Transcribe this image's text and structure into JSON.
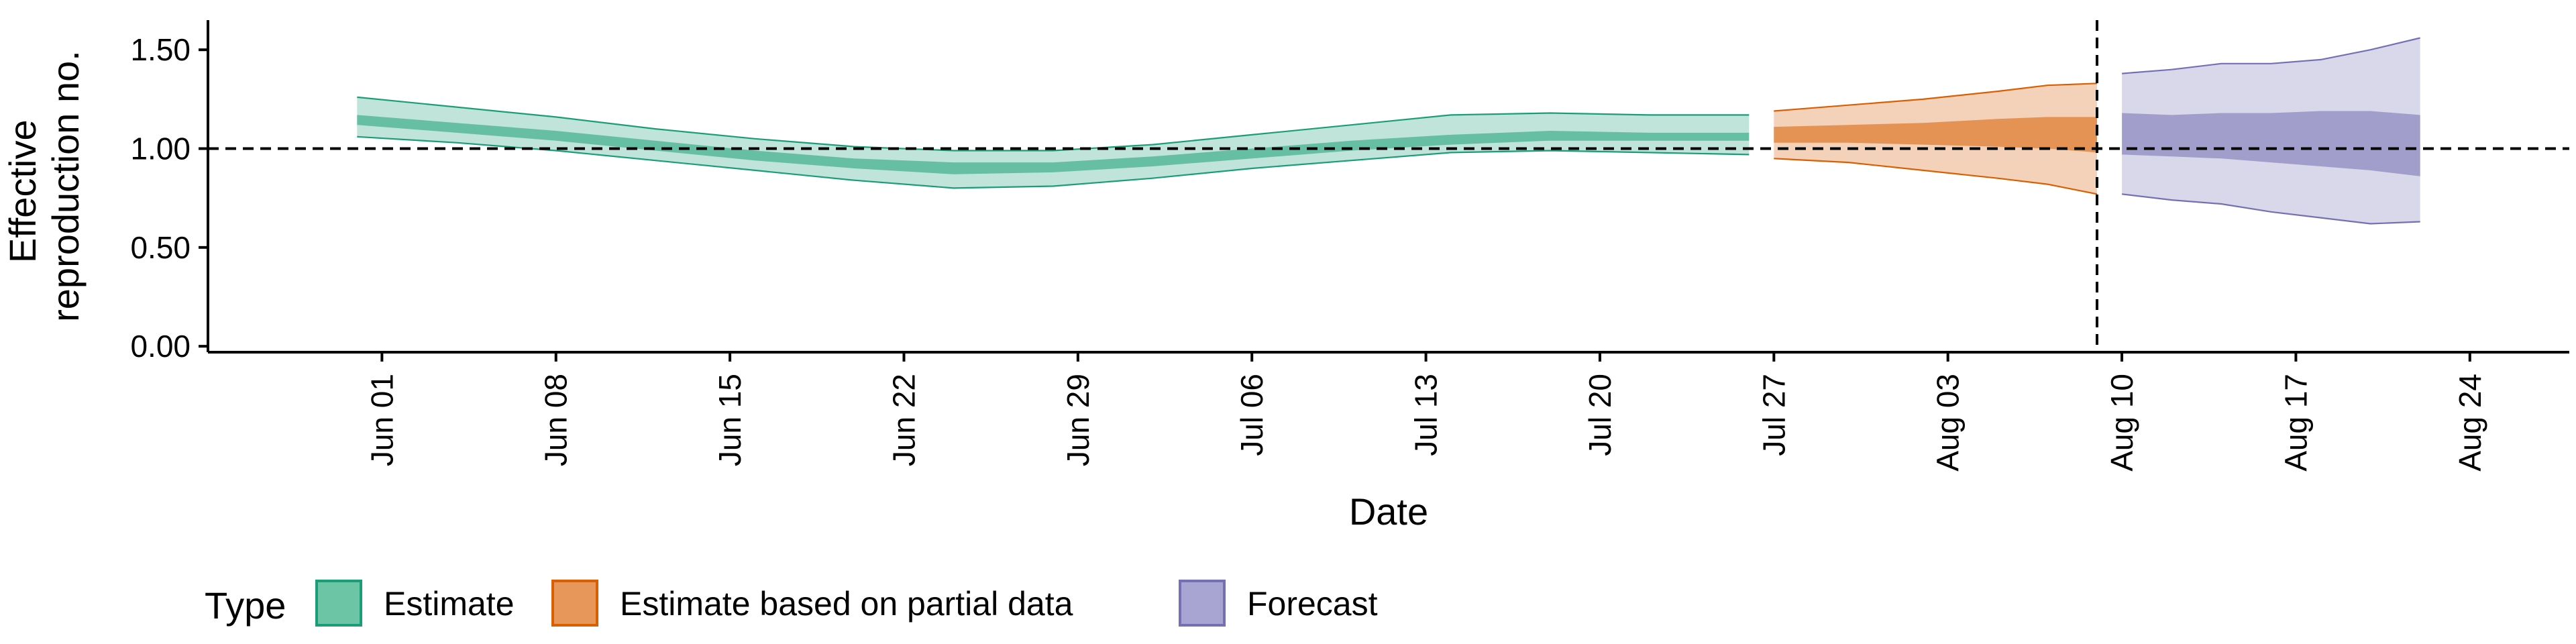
{
  "chart_data": {
    "type": "area",
    "xlabel": "Date",
    "ylabel": [
      "Effective",
      "reproduction no."
    ],
    "x_type": "date",
    "xlim": [
      "2020-05-25",
      "2020-08-28"
    ],
    "ylim": [
      -0.03,
      1.65
    ],
    "y_ticks": [
      0.0,
      0.5,
      1.0,
      1.5
    ],
    "y_tick_labels": [
      "0.00",
      "0.50",
      "1.00",
      "1.50"
    ],
    "x_ticks": [
      "2020-06-01",
      "2020-06-08",
      "2020-06-15",
      "2020-06-22",
      "2020-06-29",
      "2020-07-06",
      "2020-07-13",
      "2020-07-20",
      "2020-07-27",
      "2020-08-03",
      "2020-08-10",
      "2020-08-17",
      "2020-08-24"
    ],
    "x_tick_labels": [
      "Jun 01",
      "Jun 08",
      "Jun 15",
      "Jun 22",
      "Jun 29",
      "Jul 06",
      "Jul 13",
      "Jul 20",
      "Jul 27",
      "Aug 03",
      "Aug 10",
      "Aug 17",
      "Aug 24"
    ],
    "reference_line_y": 1.0,
    "reference_line_date": "2020-08-09",
    "grid": false,
    "legend": {
      "title": "Type",
      "position": "bottom-left",
      "entries": [
        {
          "label": "Estimate",
          "fill": "#6cc5a5",
          "stroke": "#1b9e77"
        },
        {
          "label": "Estimate based on partial data",
          "fill": "#e8975b",
          "stroke": "#d95f02"
        },
        {
          "label": "Forecast",
          "fill": "#a9a5d3",
          "stroke": "#7570b3"
        }
      ]
    },
    "series": [
      {
        "name": "Estimate",
        "fill": "#1b9e77",
        "stroke": "#1b9e77",
        "points": [
          {
            "date": "2020-05-31",
            "upper90": 1.26,
            "upper50": 1.17,
            "lower50": 1.12,
            "lower90": 1.06
          },
          {
            "date": "2020-06-04",
            "upper90": 1.21,
            "upper50": 1.13,
            "lower50": 1.08,
            "lower90": 1.03
          },
          {
            "date": "2020-06-08",
            "upper90": 1.16,
            "upper50": 1.09,
            "lower50": 1.04,
            "lower90": 0.99
          },
          {
            "date": "2020-06-12",
            "upper90": 1.1,
            "upper50": 1.04,
            "lower50": 0.99,
            "lower90": 0.94
          },
          {
            "date": "2020-06-16",
            "upper90": 1.05,
            "upper50": 0.99,
            "lower50": 0.94,
            "lower90": 0.89
          },
          {
            "date": "2020-06-20",
            "upper90": 1.01,
            "upper50": 0.95,
            "lower50": 0.9,
            "lower90": 0.84
          },
          {
            "date": "2020-06-24",
            "upper90": 0.99,
            "upper50": 0.93,
            "lower50": 0.87,
            "lower90": 0.8
          },
          {
            "date": "2020-06-28",
            "upper90": 0.99,
            "upper50": 0.93,
            "lower50": 0.88,
            "lower90": 0.81
          },
          {
            "date": "2020-07-02",
            "upper90": 1.02,
            "upper50": 0.96,
            "lower50": 0.91,
            "lower90": 0.85
          },
          {
            "date": "2020-07-06",
            "upper90": 1.07,
            "upper50": 1.0,
            "lower50": 0.95,
            "lower90": 0.9
          },
          {
            "date": "2020-07-10",
            "upper90": 1.12,
            "upper50": 1.04,
            "lower50": 0.99,
            "lower90": 0.94
          },
          {
            "date": "2020-07-14",
            "upper90": 1.17,
            "upper50": 1.07,
            "lower50": 1.02,
            "lower90": 0.98
          },
          {
            "date": "2020-07-18",
            "upper90": 1.18,
            "upper50": 1.09,
            "lower50": 1.04,
            "lower90": 0.99
          },
          {
            "date": "2020-07-22",
            "upper90": 1.17,
            "upper50": 1.08,
            "lower50": 1.04,
            "lower90": 0.98
          },
          {
            "date": "2020-07-26",
            "upper90": 1.17,
            "upper50": 1.08,
            "lower50": 1.04,
            "lower90": 0.97
          }
        ]
      },
      {
        "name": "Estimate based on partial data",
        "fill": "#d95f02",
        "stroke": "#d95f02",
        "points": [
          {
            "date": "2020-07-27",
            "upper90": 1.19,
            "upper50": 1.11,
            "lower50": 1.03,
            "lower90": 0.95
          },
          {
            "date": "2020-07-30",
            "upper90": 1.22,
            "upper50": 1.12,
            "lower50": 1.03,
            "lower90": 0.93
          },
          {
            "date": "2020-08-02",
            "upper90": 1.25,
            "upper50": 1.13,
            "lower50": 1.02,
            "lower90": 0.89
          },
          {
            "date": "2020-08-05",
            "upper90": 1.29,
            "upper50": 1.15,
            "lower50": 1.01,
            "lower90": 0.85
          },
          {
            "date": "2020-08-07",
            "upper90": 1.32,
            "upper50": 1.16,
            "lower50": 1.0,
            "lower90": 0.82
          },
          {
            "date": "2020-08-09",
            "upper90": 1.33,
            "upper50": 1.16,
            "lower50": 0.98,
            "lower90": 0.77
          }
        ]
      },
      {
        "name": "Forecast",
        "fill": "#7570b3",
        "stroke": "#7570b3",
        "points": [
          {
            "date": "2020-08-10",
            "upper90": 1.38,
            "upper50": 1.18,
            "lower50": 0.97,
            "lower90": 0.77
          },
          {
            "date": "2020-08-12",
            "upper90": 1.4,
            "upper50": 1.17,
            "lower50": 0.96,
            "lower90": 0.74
          },
          {
            "date": "2020-08-14",
            "upper90": 1.43,
            "upper50": 1.18,
            "lower50": 0.95,
            "lower90": 0.72
          },
          {
            "date": "2020-08-16",
            "upper90": 1.43,
            "upper50": 1.18,
            "lower50": 0.93,
            "lower90": 0.68
          },
          {
            "date": "2020-08-18",
            "upper90": 1.45,
            "upper50": 1.19,
            "lower50": 0.91,
            "lower90": 0.65
          },
          {
            "date": "2020-08-20",
            "upper90": 1.5,
            "upper50": 1.19,
            "lower50": 0.89,
            "lower90": 0.62
          },
          {
            "date": "2020-08-22",
            "upper90": 1.56,
            "upper50": 1.17,
            "lower50": 0.86,
            "lower90": 0.63
          }
        ]
      }
    ]
  }
}
